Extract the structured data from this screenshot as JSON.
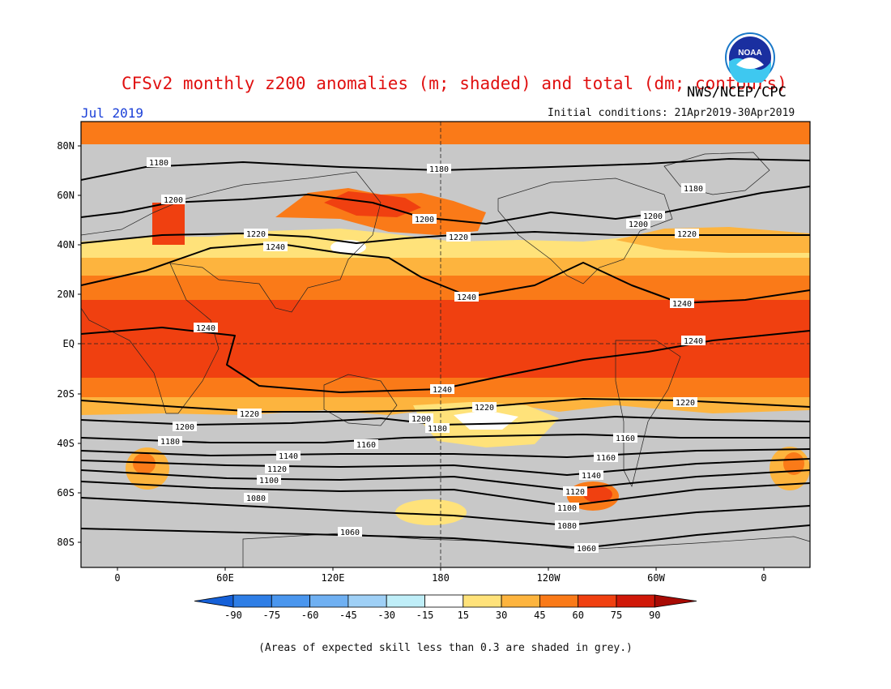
{
  "title": "CFSv2 monthly z200 anomalies (m; shaded) and total (dm; contours)",
  "agency": "NWS/NCEP/CPC",
  "month": "Jul 2019",
  "initial_conditions": "Initial conditions: 21Apr2019-30Apr2019",
  "logo_text": "NOAA",
  "footnote": "(Areas of expected skill less than 0.3 are shaded in grey.)",
  "lat_ticks": [
    "80N",
    "60N",
    "40N",
    "20N",
    "EQ",
    "20S",
    "40S",
    "60S",
    "80S"
  ],
  "lon_ticks": [
    "0",
    "60E",
    "120E",
    "180",
    "120W",
    "60W",
    "0"
  ],
  "colorbar": {
    "labels": [
      "-90",
      "-75",
      "-60",
      "-45",
      "-30",
      "-15",
      "15",
      "30",
      "45",
      "60",
      "75",
      "90"
    ],
    "colors": [
      "#1560d8",
      "#2e7ee6",
      "#4a96ee",
      "#6fb0f2",
      "#9fd0f6",
      "#bfeef8",
      "#ffffff",
      "#ffe27a",
      "#fdb43e",
      "#fa7a18",
      "#f04010",
      "#d01808",
      "#a80a04"
    ]
  },
  "map": {
    "skill_mask_color": "#c8c8c8",
    "contour_labels": [
      "1180",
      "1180",
      "1180",
      "1200",
      "1200",
      "1200",
      "1200",
      "1220",
      "1220",
      "1220",
      "1240",
      "1240",
      "1240",
      "1240",
      "1240",
      "1240",
      "1220",
      "1220",
      "1220",
      "1200",
      "1200",
      "1180",
      "1180",
      "1160",
      "1160",
      "1160",
      "1140",
      "1140",
      "1120",
      "1120",
      "1100",
      "1100",
      "1080",
      "1080",
      "1060",
      "1060"
    ]
  }
}
